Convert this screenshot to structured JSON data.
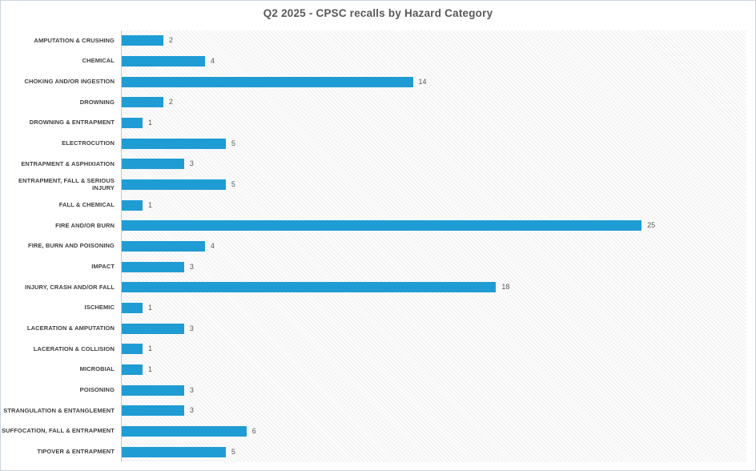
{
  "chart": {
    "title": "Q2 2025 - CPSC recalls by Hazard Category"
  },
  "chart_data": {
    "type": "bar",
    "orientation": "horizontal",
    "title": "Q2 2025 - CPSC recalls by Hazard Category",
    "categories": [
      "AMPUTATION & CRUSHING",
      "CHEMICAL",
      "CHOKING AND/OR INGESTION",
      "DROWNING",
      "DROWNING & ENTRAPMENT",
      "ELECTROCUTION",
      "ENTRAPMENT & ASPHIXIATION",
      "ENTRAPMENT, FALL & SERIOUS INJURY",
      "FALL & CHEMICAL",
      "FIRE AND/OR BURN",
      "FIRE, BURN AND POISONING",
      "IMPACT",
      "INJURY, CRASH AND/OR FALL",
      "ISCHEMIC",
      "LACERATION & AMPUTATION",
      "LACERATION & COLLISION",
      "MICROBIAL",
      "POISONING",
      "STRANGULATION & ENTANGLEMENT",
      "SUFFOCATION, FALL & ENTRAPMENT",
      "TIPOVER & ENTRAPMENT"
    ],
    "values": [
      2,
      4,
      14,
      2,
      1,
      5,
      3,
      5,
      1,
      25,
      4,
      3,
      18,
      1,
      3,
      1,
      1,
      3,
      3,
      6,
      5
    ],
    "value_labels_shown": true,
    "xlabel": "",
    "ylabel": "",
    "xlim": [
      0,
      30
    ],
    "grid": false,
    "legend": false
  },
  "colors": {
    "bar": "#1f9cd4",
    "title_text": "#595959",
    "category_text": "#3f3f3f",
    "value_text": "#595959",
    "axis_line": "#c8c8c8",
    "outer_border": "#ccd4dd"
  }
}
